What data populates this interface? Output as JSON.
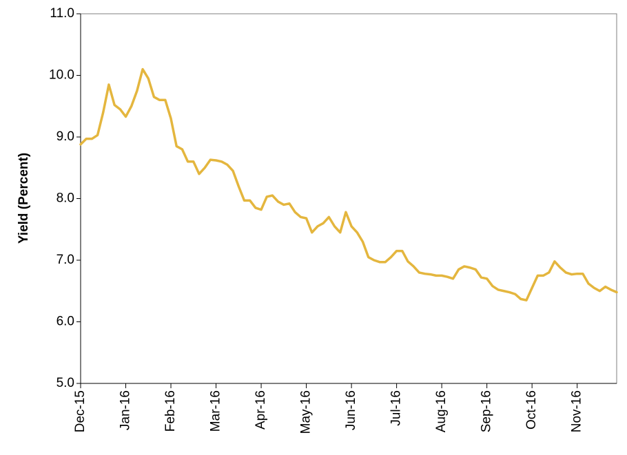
{
  "chart_data": {
    "type": "line",
    "y_label": "Yield (Percent)",
    "color": "#e4b63e",
    "categories": [
      "Dec-15",
      null,
      null,
      null,
      null,
      null,
      null,
      null,
      "Jan-16",
      null,
      null,
      null,
      null,
      null,
      null,
      null,
      "Feb-16",
      null,
      null,
      null,
      null,
      null,
      null,
      null,
      "Mar-16",
      null,
      null,
      null,
      null,
      null,
      null,
      null,
      "Apr-16",
      null,
      null,
      null,
      null,
      null,
      null,
      null,
      "May-16",
      null,
      null,
      null,
      null,
      null,
      null,
      null,
      "Jun-16",
      null,
      null,
      null,
      null,
      null,
      null,
      null,
      "Jul-16",
      null,
      null,
      null,
      null,
      null,
      null,
      null,
      "Aug-16",
      null,
      null,
      null,
      null,
      null,
      null,
      null,
      "Sep-16",
      null,
      null,
      null,
      null,
      null,
      null,
      null,
      "Oct-16",
      null,
      null,
      null,
      null,
      null,
      null,
      null,
      "Nov-16",
      null,
      null,
      null,
      null,
      null,
      null,
      null
    ],
    "values": [
      8.88,
      8.97,
      8.97,
      9.03,
      9.4,
      9.85,
      9.52,
      9.45,
      9.33,
      9.5,
      9.75,
      10.1,
      9.95,
      9.65,
      9.6,
      9.6,
      9.3,
      8.85,
      8.8,
      8.6,
      8.6,
      8.4,
      8.5,
      8.63,
      8.62,
      8.6,
      8.55,
      8.45,
      8.2,
      7.97,
      7.97,
      7.85,
      7.82,
      8.03,
      8.05,
      7.95,
      7.9,
      7.92,
      7.78,
      7.7,
      7.68,
      7.45,
      7.55,
      7.6,
      7.7,
      7.55,
      7.45,
      7.78,
      7.55,
      7.45,
      7.3,
      7.05,
      7.0,
      6.97,
      6.97,
      7.05,
      7.15,
      7.15,
      6.98,
      6.9,
      6.8,
      6.78,
      6.77,
      6.75,
      6.75,
      6.73,
      6.7,
      6.85,
      6.9,
      6.88,
      6.85,
      6.72,
      6.7,
      6.58,
      6.52,
      6.5,
      6.48,
      6.45,
      6.37,
      6.35,
      6.55,
      6.75,
      6.75,
      6.8,
      6.98,
      6.88,
      6.8,
      6.77,
      6.78,
      6.78,
      6.62,
      6.55,
      6.5,
      6.57,
      6.52,
      6.48
    ],
    "ylim": [
      5,
      11
    ],
    "yticks": [
      {
        "value": 5,
        "label": "5.0"
      },
      {
        "value": 6,
        "label": "6.0"
      },
      {
        "value": 7,
        "label": "7.0"
      },
      {
        "value": 8,
        "label": "8.0"
      },
      {
        "value": 9,
        "label": "9.0"
      },
      {
        "value": 10,
        "label": "10.0"
      },
      {
        "value": 11,
        "label": "11.0"
      }
    ],
    "grid": false
  }
}
